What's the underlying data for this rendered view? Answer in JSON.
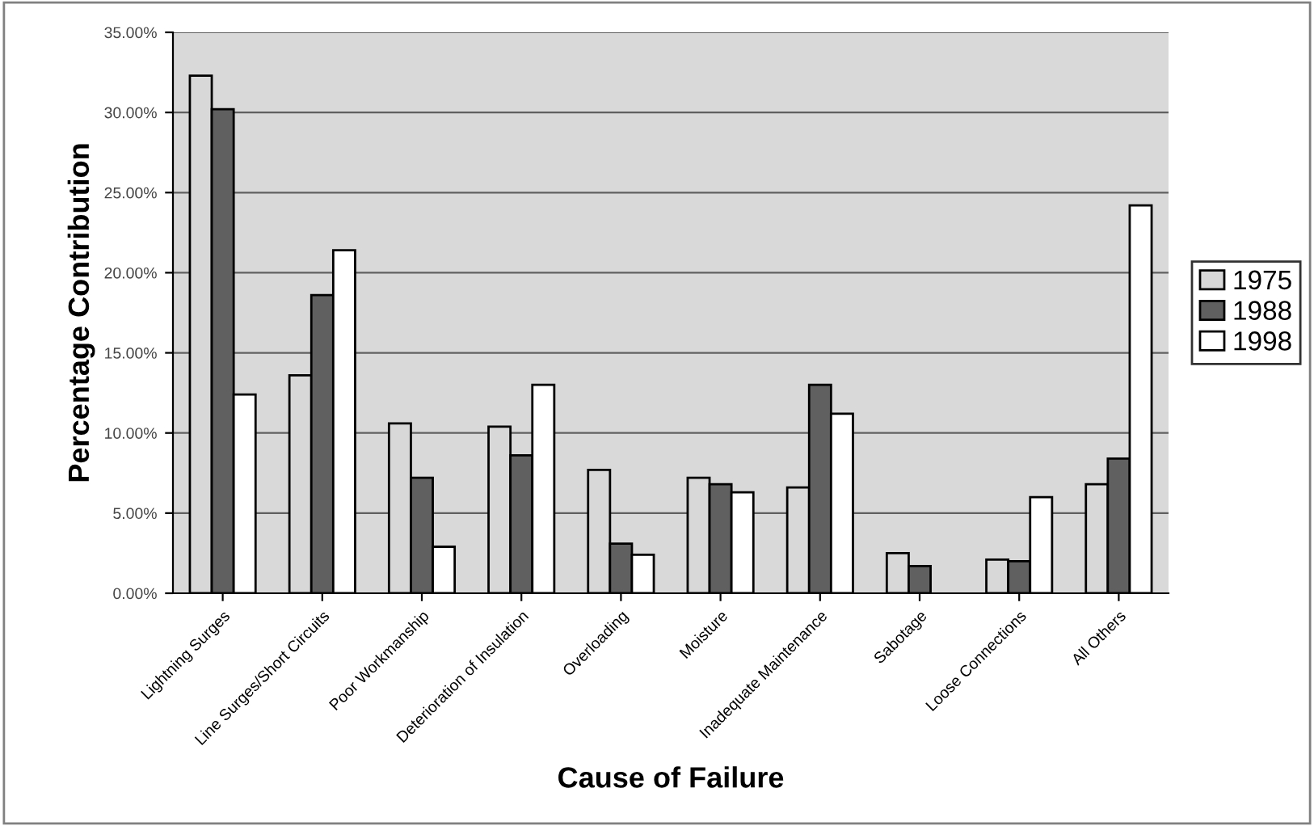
{
  "chart_data": {
    "type": "bar",
    "xlabel": "Cause of Failure",
    "ylabel": "Percentage Contribution",
    "categories": [
      "Lightning Surges",
      "Line Surges/Short Circuits",
      "Poor Workmanship",
      "Deterioration of Insulation",
      "Overloading",
      "Moisture",
      "Inadequate Maintenance",
      "Sabotage",
      "Loose Connections",
      "All Others"
    ],
    "series": [
      {
        "name": "1975",
        "color": "#d8d8d8",
        "values": [
          32.3,
          13.6,
          10.6,
          10.4,
          7.7,
          7.2,
          6.6,
          2.5,
          2.1,
          6.8
        ]
      },
      {
        "name": "1988",
        "color": "#606060",
        "values": [
          30.2,
          18.6,
          7.2,
          8.6,
          3.1,
          6.8,
          13.0,
          1.7,
          2.0,
          8.4
        ]
      },
      {
        "name": "1998",
        "color": "#ffffff",
        "values": [
          12.4,
          21.4,
          2.9,
          13.0,
          2.4,
          6.3,
          11.2,
          null,
          6.0,
          24.2
        ]
      }
    ],
    "ylim": [
      0,
      35
    ],
    "yticks": [
      {
        "value": 0,
        "label": "0.00%"
      },
      {
        "value": 5,
        "label": "5.00%"
      },
      {
        "value": 10,
        "label": "10.00%"
      },
      {
        "value": 15,
        "label": "15.00%"
      },
      {
        "value": 20,
        "label": "20.00%"
      },
      {
        "value": 25,
        "label": "25.00%"
      },
      {
        "value": 30,
        "label": "30.00%"
      },
      {
        "value": 35,
        "label": "35.00%"
      }
    ],
    "grid": "y",
    "legend": "right"
  }
}
